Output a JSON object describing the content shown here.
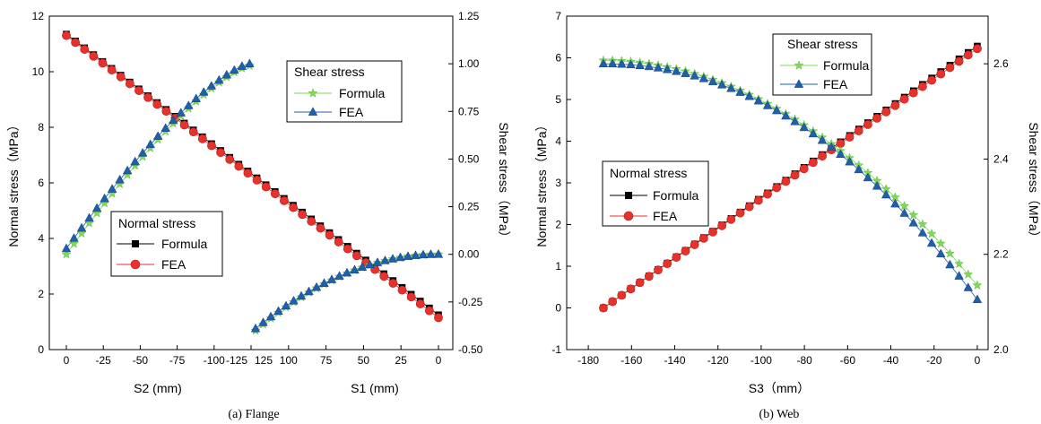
{
  "colors": {
    "black": "#000000",
    "red": "#e8312b",
    "green": "#7ed957",
    "blue": "#1f5fae"
  },
  "chart_data": [
    {
      "type": "scatter",
      "caption": "(a) Flange",
      "left_axis": {
        "label": "Normal stress（MPa）",
        "range": [
          0,
          12
        ],
        "ticks": [
          "0",
          "2",
          "4",
          "6",
          "8",
          "10",
          "12"
        ]
      },
      "right_axis": {
        "label": "Shear stress（MPa）",
        "range": [
          -0.5,
          1.25
        ],
        "ticks": [
          "-0.50",
          "-0.25",
          "0.00",
          "0.25",
          "0.50",
          "0.75",
          "1.00",
          "1.25"
        ]
      },
      "x_axis_s2": {
        "label": "S2 (mm)",
        "range": [
          0,
          -125
        ],
        "ticks": [
          "0",
          "-25",
          "-50",
          "-75",
          "-100",
          "-125"
        ]
      },
      "x_axis_s1": {
        "label": "S1 (mm)",
        "range": [
          125,
          0
        ],
        "ticks": [
          "125",
          "100",
          "75",
          "50",
          "25",
          "0"
        ]
      },
      "normal_stress_legend": {
        "title": "Normal stress",
        "formula": "Formula",
        "fea": "FEA"
      },
      "shear_stress_legend": {
        "title": "Shear stress",
        "formula": "Formula",
        "fea": "FEA"
      },
      "normal_stress": {
        "position_fraction": {
          "start": 0,
          "end": 1,
          "count": 42
        },
        "formula": {
          "start": 11.35,
          "end": 1.25
        },
        "fea": {
          "start": 11.3,
          "end": 1.15
        }
      },
      "shear_stress": {
        "s2_branch": {
          "x": [
            0,
            -124
          ],
          "formula": [
            0.0,
            0.99
          ],
          "fea": [
            0.03,
            1.0
          ],
          "count": 25
        },
        "s1_branch": {
          "x": [
            122,
            0
          ],
          "formula": [
            -0.4,
            0.0
          ],
          "fea": [
            -0.39,
            0.0
          ],
          "count": 25
        }
      }
    },
    {
      "type": "scatter",
      "caption": "(b) Web",
      "left_axis": {
        "label": "Normal stress（MPa）",
        "range": [
          -1,
          7
        ],
        "ticks": [
          "-1",
          "0",
          "1",
          "2",
          "3",
          "4",
          "5",
          "6",
          "7"
        ]
      },
      "right_axis": {
        "label": "Shear stress（MPa）",
        "range": [
          2.0,
          2.7
        ],
        "ticks": [
          "2.0",
          "2.2",
          "2.4",
          "2.6"
        ]
      },
      "x_axis": {
        "label": "S3（mm）",
        "range": [
          -190,
          5
        ],
        "ticks": [
          "-180",
          "-160",
          "-140",
          "-120",
          "-100",
          "-80",
          "-60",
          "-40",
          "-20",
          "0"
        ]
      },
      "normal_stress_legend": {
        "title": "Normal stress",
        "formula": "Formula",
        "fea": "FEA"
      },
      "shear_stress_legend": {
        "title": "Shear stress",
        "formula": "Formula",
        "fea": "FEA"
      },
      "normal_stress": {
        "x": [
          -173,
          0
        ],
        "count": 42,
        "formula": {
          "start": 0.0,
          "end": 6.28
        },
        "fea": {
          "start": 0.0,
          "end": 6.22
        }
      },
      "shear_stress": {
        "x": [
          -173,
          0
        ],
        "count": 42,
        "formula": {
          "start": 2.607,
          "end": 2.135
        },
        "fea": {
          "start": 2.6,
          "end": 2.105
        }
      }
    }
  ]
}
